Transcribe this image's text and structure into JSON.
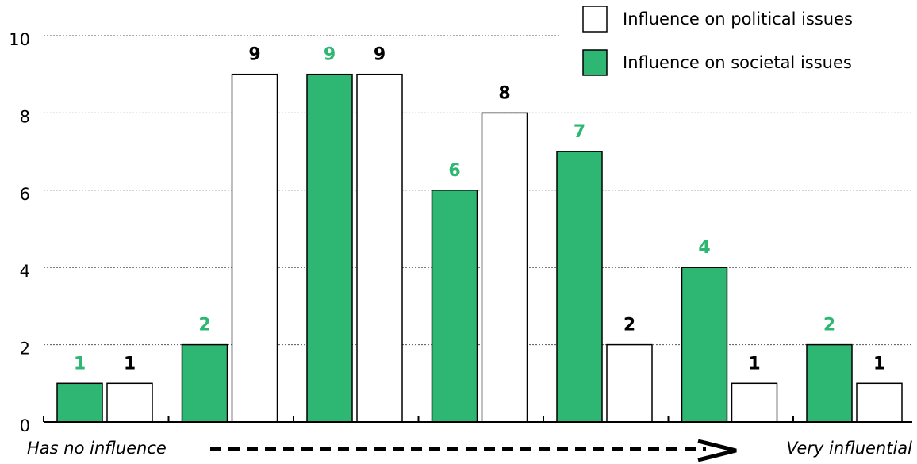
{
  "chart_data": {
    "type": "bar",
    "categories": [
      null,
      null,
      null,
      null,
      null,
      null,
      null
    ],
    "series": [
      {
        "name": "Influence on societal issues",
        "color": "#2eb673",
        "values": [
          1,
          2,
          9,
          6,
          7,
          4,
          2
        ]
      },
      {
        "name": "Influence on political issues",
        "color": "#ffffff",
        "values": [
          1,
          9,
          9,
          8,
          2,
          1,
          1
        ]
      }
    ],
    "ylim": [
      0,
      10
    ],
    "yticks": [
      0,
      2,
      4,
      6,
      8,
      10
    ],
    "grid": true,
    "x_start_label": "Has no influence",
    "x_end_label": "Very influential"
  }
}
